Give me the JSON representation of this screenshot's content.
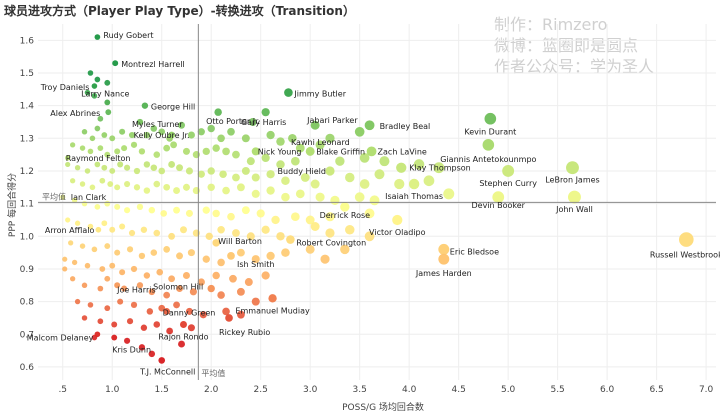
{
  "title": "球员进攻方式（Player Play Type）-转换进攻（Transition）",
  "watermark": [
    "制作：Rimzero",
    "微博：篮圈即是圆点",
    "作者公众号：学为圣人"
  ],
  "colors": {
    "scale": [
      "#d7191c",
      "#fdae61",
      "#ffff8c",
      "#a6d96a",
      "#1a9641"
    ],
    "grid": "#eeeeee",
    "refline": "#888888",
    "axis_text": "#444444",
    "label_text": "#222222"
  },
  "chart_data": {
    "type": "scatter",
    "title": "球员进攻方式（Player Play Type）-转换进攻（Transition）",
    "xlabel": "POSS/G 场均回合数",
    "ylabel": "PPP 每回合得分",
    "xlim": [
      0.25,
      7.1
    ],
    "ylim": [
      0.56,
      1.65
    ],
    "xticks": [
      0.5,
      1.0,
      1.5,
      2.0,
      2.5,
      3.0,
      3.5,
      4.0,
      4.5,
      5.0,
      5.5,
      6.0,
      6.5,
      7.0
    ],
    "xtick_labels": [
      ".5",
      "1.0",
      "1.5",
      "2.0",
      "2.5",
      "3.0",
      "3.5",
      "4.0",
      "4.5",
      "5.0",
      "5.5",
      "6.0",
      "6.5",
      "7.0"
    ],
    "yticks": [
      0.6,
      0.7,
      0.8,
      0.9,
      1.0,
      1.1,
      1.2,
      1.3,
      1.4,
      1.5,
      1.6
    ],
    "ytick_labels": [
      "0.6",
      "0.7",
      "0.8",
      "0.9",
      "1.0",
      "1.1",
      "1.2",
      "1.3",
      "1.4",
      "1.5",
      "1.6"
    ],
    "grid": true,
    "avg_x": 1.87,
    "avg_y": 1.104,
    "avg_x_label": "平均值",
    "avg_y_label": "平均值",
    "color_encoding": "PPP",
    "labeled_points": [
      {
        "name": "Rudy Gobert",
        "x": 0.85,
        "y": 1.61
      },
      {
        "name": "Montrezl Harrell",
        "x": 1.03,
        "y": 1.53
      },
      {
        "name": "Troy Daniels",
        "x": 0.82,
        "y": 1.46
      },
      {
        "name": "Larry Nance",
        "x": 0.95,
        "y": 1.41
      },
      {
        "name": "Alex Abrines",
        "x": 0.96,
        "y": 1.38
      },
      {
        "name": "George Hill",
        "x": 1.33,
        "y": 1.4
      },
      {
        "name": "Myles Turner",
        "x": 1.28,
        "y": 1.35
      },
      {
        "name": "Otto Porter Jr.",
        "x": 2.07,
        "y": 1.38
      },
      {
        "name": "Jimmy Butler",
        "x": 2.78,
        "y": 1.44
      },
      {
        "name": "Gary Harris",
        "x": 2.55,
        "y": 1.38
      },
      {
        "name": "Jabari Parker",
        "x": 3.05,
        "y": 1.34
      },
      {
        "name": "Bradley Beal",
        "x": 3.6,
        "y": 1.34
      },
      {
        "name": "Kawhi Leonard",
        "x": 3.5,
        "y": 1.32
      },
      {
        "name": "Kevin Durant",
        "x": 4.82,
        "y": 1.36
      },
      {
        "name": "Kelly Oubre Jr.",
        "x": 1.6,
        "y": 1.31
      },
      {
        "name": "Nick Young",
        "x": 2.45,
        "y": 1.26
      },
      {
        "name": "Blake Griffin",
        "x": 3.0,
        "y": 1.26
      },
      {
        "name": "Zach LaVine",
        "x": 3.62,
        "y": 1.26
      },
      {
        "name": "Giannis Antetokounmpo",
        "x": 4.8,
        "y": 1.28
      },
      {
        "name": "Raymond Felton",
        "x": 0.55,
        "y": 1.24
      },
      {
        "name": "Klay Thompson",
        "x": 3.92,
        "y": 1.21
      },
      {
        "name": "Buddy Hield",
        "x": 3.2,
        "y": 1.2
      },
      {
        "name": "LeBron James",
        "x": 5.65,
        "y": 1.21
      },
      {
        "name": "Stephen Curry",
        "x": 5.0,
        "y": 1.2
      },
      {
        "name": "Ian Clark",
        "x": 0.5,
        "y": 1.12
      },
      {
        "name": "Isaiah Thomas",
        "x": 4.05,
        "y": 1.16
      },
      {
        "name": "Devin Booker",
        "x": 4.9,
        "y": 1.12
      },
      {
        "name": "John Wall",
        "x": 5.67,
        "y": 1.12
      },
      {
        "name": "Derrick Rose",
        "x": 3.35,
        "y": 1.09
      },
      {
        "name": "Arron Afflalo",
        "x": 0.86,
        "y": 1.02
      },
      {
        "name": "Victor Oladipo",
        "x": 3.88,
        "y": 1.05
      },
      {
        "name": "Will Barton",
        "x": 2.05,
        "y": 0.98
      },
      {
        "name": "Robert Covington",
        "x": 2.8,
        "y": 0.99
      },
      {
        "name": "Eric Bledsoe",
        "x": 4.35,
        "y": 0.96
      },
      {
        "name": "Russell Westbrook",
        "x": 6.8,
        "y": 0.99
      },
      {
        "name": "Ish Smith",
        "x": 2.2,
        "y": 0.94
      },
      {
        "name": "James Harden",
        "x": 4.35,
        "y": 0.93
      },
      {
        "name": "Joe Harris",
        "x": 1.05,
        "y": 0.85
      },
      {
        "name": "Solomon Hill",
        "x": 2.0,
        "y": 0.84
      },
      {
        "name": "Emmanuel Mudiay",
        "x": 2.62,
        "y": 0.81
      },
      {
        "name": "Danny Green",
        "x": 1.55,
        "y": 0.77
      },
      {
        "name": "Rickey Rubio",
        "x": 2.18,
        "y": 0.75
      },
      {
        "name": "Rajon Rondo",
        "x": 1.72,
        "y": 0.73
      },
      {
        "name": "Malcom Delaney",
        "x": 0.85,
        "y": 0.7
      },
      {
        "name": "Kris Dunn",
        "x": 1.02,
        "y": 0.69
      },
      {
        "name": "T.J. McConnell",
        "x": 1.5,
        "y": 0.62
      }
    ],
    "other_points": [
      [
        0.78,
        1.5
      ],
      [
        0.85,
        1.48
      ],
      [
        0.75,
        1.44
      ],
      [
        0.82,
        1.43
      ],
      [
        0.95,
        1.47
      ],
      [
        0.88,
        1.36
      ],
      [
        0.85,
        1.33
      ],
      [
        0.72,
        1.32
      ],
      [
        0.8,
        1.3
      ],
      [
        0.92,
        1.31
      ],
      [
        1.0,
        1.3
      ],
      [
        1.1,
        1.32
      ],
      [
        1.2,
        1.31
      ],
      [
        1.35,
        1.31
      ],
      [
        1.42,
        1.33
      ],
      [
        1.5,
        1.32
      ],
      [
        1.58,
        1.3
      ],
      [
        1.7,
        1.34
      ],
      [
        1.8,
        1.31
      ],
      [
        1.9,
        1.32
      ],
      [
        2.0,
        1.33
      ],
      [
        2.1,
        1.3
      ],
      [
        2.2,
        1.32
      ],
      [
        2.35,
        1.3
      ],
      [
        2.42,
        1.35
      ],
      [
        2.6,
        1.31
      ],
      [
        2.7,
        1.29
      ],
      [
        2.82,
        1.3
      ],
      [
        2.9,
        1.27
      ],
      [
        3.1,
        1.28
      ],
      [
        3.2,
        1.3
      ],
      [
        0.6,
        1.28
      ],
      [
        0.7,
        1.27
      ],
      [
        0.78,
        1.26
      ],
      [
        0.88,
        1.27
      ],
      [
        0.95,
        1.25
      ],
      [
        1.05,
        1.26
      ],
      [
        1.12,
        1.27
      ],
      [
        1.22,
        1.28
      ],
      [
        1.3,
        1.26
      ],
      [
        1.45,
        1.25
      ],
      [
        1.55,
        1.27
      ],
      [
        1.62,
        1.28
      ],
      [
        1.75,
        1.26
      ],
      [
        1.85,
        1.25
      ],
      [
        1.95,
        1.26
      ],
      [
        2.05,
        1.27
      ],
      [
        2.15,
        1.26
      ],
      [
        2.25,
        1.25
      ],
      [
        2.4,
        1.23
      ],
      [
        2.55,
        1.24
      ],
      [
        2.7,
        1.22
      ],
      [
        2.85,
        1.23
      ],
      [
        3.3,
        1.23
      ],
      [
        3.55,
        1.24
      ],
      [
        3.75,
        1.23
      ],
      [
        4.1,
        1.22
      ],
      [
        4.3,
        1.21
      ],
      [
        0.55,
        1.22
      ],
      [
        0.65,
        1.21
      ],
      [
        0.75,
        1.2
      ],
      [
        0.85,
        1.22
      ],
      [
        0.92,
        1.21
      ],
      [
        1.0,
        1.2
      ],
      [
        1.08,
        1.22
      ],
      [
        1.15,
        1.21
      ],
      [
        1.25,
        1.2
      ],
      [
        1.35,
        1.22
      ],
      [
        1.42,
        1.21
      ],
      [
        1.5,
        1.2
      ],
      [
        1.6,
        1.22
      ],
      [
        1.68,
        1.21
      ],
      [
        1.78,
        1.2
      ],
      [
        1.9,
        1.19
      ],
      [
        2.0,
        1.2
      ],
      [
        2.12,
        1.19
      ],
      [
        2.25,
        1.18
      ],
      [
        2.35,
        1.2
      ],
      [
        2.45,
        1.18
      ],
      [
        2.6,
        1.19
      ],
      [
        2.75,
        1.17
      ],
      [
        2.95,
        1.18
      ],
      [
        3.05,
        1.16
      ],
      [
        3.4,
        1.18
      ],
      [
        3.55,
        1.16
      ],
      [
        3.7,
        1.19
      ],
      [
        3.9,
        1.16
      ],
      [
        4.2,
        1.17
      ],
      [
        0.6,
        1.17
      ],
      [
        0.7,
        1.16
      ],
      [
        0.8,
        1.15
      ],
      [
        0.9,
        1.17
      ],
      [
        0.98,
        1.16
      ],
      [
        1.05,
        1.15
      ],
      [
        1.15,
        1.16
      ],
      [
        1.25,
        1.15
      ],
      [
        1.35,
        1.14
      ],
      [
        1.45,
        1.16
      ],
      [
        1.55,
        1.15
      ],
      [
        1.65,
        1.14
      ],
      [
        1.75,
        1.15
      ],
      [
        1.85,
        1.14
      ],
      [
        2.0,
        1.15
      ],
      [
        2.15,
        1.14
      ],
      [
        2.3,
        1.15
      ],
      [
        2.45,
        1.13
      ],
      [
        2.6,
        1.14
      ],
      [
        2.75,
        1.12
      ],
      [
        2.9,
        1.13
      ],
      [
        3.1,
        1.12
      ],
      [
        3.25,
        1.11
      ],
      [
        3.5,
        1.12
      ],
      [
        3.65,
        1.11
      ],
      [
        4.4,
        1.13
      ],
      [
        0.62,
        1.11
      ],
      [
        0.72,
        1.1
      ],
      [
        0.85,
        1.09
      ],
      [
        0.95,
        1.1
      ],
      [
        1.05,
        1.09
      ],
      [
        1.15,
        1.08
      ],
      [
        1.28,
        1.09
      ],
      [
        1.4,
        1.08
      ],
      [
        1.52,
        1.07
      ],
      [
        1.65,
        1.08
      ],
      [
        1.78,
        1.07
      ],
      [
        1.95,
        1.08
      ],
      [
        2.05,
        1.07
      ],
      [
        2.2,
        1.06
      ],
      [
        2.35,
        1.08
      ],
      [
        2.5,
        1.07
      ],
      [
        2.65,
        1.05
      ],
      [
        2.85,
        1.06
      ],
      [
        3.0,
        1.05
      ],
      [
        3.2,
        1.06
      ],
      [
        3.6,
        1.07
      ],
      [
        0.55,
        1.05
      ],
      [
        0.65,
        1.04
      ],
      [
        0.78,
        1.03
      ],
      [
        0.92,
        1.04
      ],
      [
        1.0,
        1.02
      ],
      [
        1.1,
        1.03
      ],
      [
        1.2,
        1.01
      ],
      [
        1.32,
        1.02
      ],
      [
        1.45,
        1.01
      ],
      [
        1.6,
        1.0
      ],
      [
        1.72,
        1.02
      ],
      [
        1.85,
        1.01
      ],
      [
        1.98,
        1.0
      ],
      [
        2.1,
        1.02
      ],
      [
        2.25,
        1.01
      ],
      [
        2.4,
        1.0
      ],
      [
        2.55,
        1.02
      ],
      [
        2.7,
        1.0
      ],
      [
        3.05,
        1.03
      ],
      [
        3.2,
        1.01
      ],
      [
        3.4,
        1.02
      ],
      [
        3.6,
        1.0
      ],
      [
        0.58,
        0.98
      ],
      [
        0.7,
        0.97
      ],
      [
        0.82,
        0.96
      ],
      [
        0.95,
        0.97
      ],
      [
        1.05,
        0.95
      ],
      [
        1.18,
        0.96
      ],
      [
        1.3,
        0.94
      ],
      [
        1.42,
        0.95
      ],
      [
        1.55,
        0.96
      ],
      [
        1.68,
        0.94
      ],
      [
        1.8,
        0.95
      ],
      [
        1.95,
        0.93
      ],
      [
        2.1,
        0.92
      ],
      [
        2.3,
        0.95
      ],
      [
        2.45,
        0.93
      ],
      [
        2.6,
        0.94
      ],
      [
        2.75,
        0.95
      ],
      [
        3.0,
        0.96
      ],
      [
        3.15,
        0.93
      ],
      [
        3.35,
        0.96
      ],
      [
        0.52,
        0.93
      ],
      [
        0.62,
        0.92
      ],
      [
        0.75,
        0.91
      ],
      [
        0.9,
        0.9
      ],
      [
        1.0,
        0.91
      ],
      [
        1.1,
        0.89
      ],
      [
        1.22,
        0.9
      ],
      [
        1.35,
        0.88
      ],
      [
        1.48,
        0.89
      ],
      [
        1.6,
        0.87
      ],
      [
        1.75,
        0.88
      ],
      [
        1.9,
        0.86
      ],
      [
        2.05,
        0.88
      ],
      [
        2.22,
        0.87
      ],
      [
        2.38,
        0.86
      ],
      [
        2.55,
        0.88
      ],
      [
        0.52,
        0.9
      ],
      [
        0.6,
        0.87
      ],
      [
        0.72,
        0.85
      ],
      [
        0.88,
        0.84
      ],
      [
        0.95,
        0.87
      ],
      [
        1.12,
        0.84
      ],
      [
        1.28,
        0.85
      ],
      [
        1.4,
        0.83
      ],
      [
        1.55,
        0.82
      ],
      [
        1.68,
        0.84
      ],
      [
        1.82,
        0.83
      ],
      [
        2.1,
        0.82
      ],
      [
        2.3,
        0.83
      ],
      [
        2.45,
        0.8
      ],
      [
        0.65,
        0.8
      ],
      [
        0.78,
        0.79
      ],
      [
        0.95,
        0.78
      ],
      [
        1.08,
        0.8
      ],
      [
        1.22,
        0.79
      ],
      [
        1.38,
        0.77
      ],
      [
        1.5,
        0.78
      ],
      [
        1.65,
        0.79
      ],
      [
        1.78,
        0.77
      ],
      [
        1.92,
        0.76
      ],
      [
        2.15,
        0.77
      ],
      [
        2.3,
        0.76
      ],
      [
        0.72,
        0.75
      ],
      [
        0.88,
        0.74
      ],
      [
        1.02,
        0.73
      ],
      [
        1.18,
        0.74
      ],
      [
        1.32,
        0.72
      ],
      [
        1.45,
        0.73
      ],
      [
        1.58,
        0.71
      ],
      [
        1.8,
        0.72
      ],
      [
        0.82,
        0.69
      ],
      [
        1.15,
        0.68
      ],
      [
        1.3,
        0.66
      ],
      [
        1.7,
        0.67
      ],
      [
        1.4,
        0.64
      ]
    ]
  }
}
